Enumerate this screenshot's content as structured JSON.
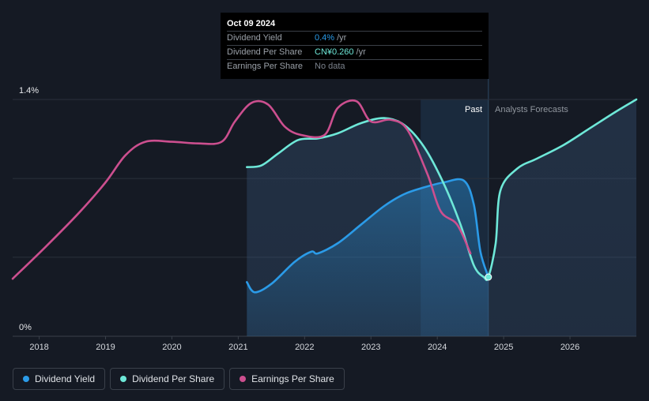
{
  "tooltip": {
    "date": "Oct 09 2024",
    "rows": [
      {
        "label": "Dividend Yield",
        "value": "0.4%",
        "unit": "/yr",
        "color": "#2b9be8"
      },
      {
        "label": "Dividend Per Share",
        "value": "CN¥0.260",
        "unit": "/yr",
        "color": "#6ee8d8"
      },
      {
        "label": "Earnings Per Share",
        "value": "No data",
        "unit": "",
        "color": "#7b828c"
      }
    ]
  },
  "regions": {
    "past": "Past",
    "forecast": "Analysts Forecasts"
  },
  "legend": [
    {
      "label": "Dividend Yield",
      "color": "#2b9be8"
    },
    {
      "label": "Dividend Per Share",
      "color": "#6ee8d8"
    },
    {
      "label": "Earnings Per Share",
      "color": "#cc4f8f"
    }
  ],
  "chart_data": {
    "type": "line",
    "x_ticks": [
      "2018",
      "2019",
      "2020",
      "2021",
      "2022",
      "2023",
      "2024",
      "2025",
      "2026"
    ],
    "y_ticks": [
      "0%",
      "1.4%"
    ],
    "ylim": [
      0,
      1.4
    ],
    "xlim": [
      2017.6,
      2027.0
    ],
    "past_start": 2023.75,
    "tooltip_x": 2024.77,
    "series": [
      {
        "name": "Dividend Yield",
        "color": "#2b9be8",
        "points": [
          [
            2021.13,
            0.32
          ],
          [
            2021.25,
            0.26
          ],
          [
            2021.5,
            0.31
          ],
          [
            2021.85,
            0.44
          ],
          [
            2022.1,
            0.5
          ],
          [
            2022.2,
            0.49
          ],
          [
            2022.5,
            0.55
          ],
          [
            2022.85,
            0.66
          ],
          [
            2023.2,
            0.77
          ],
          [
            2023.5,
            0.84
          ],
          [
            2023.8,
            0.88
          ],
          [
            2024.1,
            0.91
          ],
          [
            2024.4,
            0.92
          ],
          [
            2024.55,
            0.78
          ],
          [
            2024.65,
            0.5
          ],
          [
            2024.77,
            0.35
          ]
        ]
      },
      {
        "name": "Dividend Per Share",
        "color": "#6ee8d8",
        "points": [
          [
            2021.13,
            1.0
          ],
          [
            2021.35,
            1.01
          ],
          [
            2021.6,
            1.08
          ],
          [
            2021.9,
            1.16
          ],
          [
            2022.2,
            1.17
          ],
          [
            2022.5,
            1.2
          ],
          [
            2022.85,
            1.26
          ],
          [
            2023.2,
            1.29
          ],
          [
            2023.5,
            1.25
          ],
          [
            2023.8,
            1.12
          ],
          [
            2024.1,
            0.9
          ],
          [
            2024.35,
            0.66
          ],
          [
            2024.55,
            0.42
          ],
          [
            2024.7,
            0.35
          ],
          [
            2024.77,
            0.35
          ],
          [
            2024.88,
            0.55
          ],
          [
            2024.95,
            0.86
          ],
          [
            2025.2,
            0.99
          ],
          [
            2025.5,
            1.05
          ],
          [
            2025.9,
            1.13
          ],
          [
            2026.3,
            1.23
          ],
          [
            2026.7,
            1.33
          ],
          [
            2027.0,
            1.4
          ]
        ]
      },
      {
        "name": "Earnings Per Share",
        "color": "#cc4f8f",
        "points": [
          [
            2017.6,
            0.34
          ],
          [
            2018.1,
            0.53
          ],
          [
            2018.6,
            0.73
          ],
          [
            2019.0,
            0.91
          ],
          [
            2019.3,
            1.07
          ],
          [
            2019.6,
            1.15
          ],
          [
            2020.0,
            1.15
          ],
          [
            2020.4,
            1.14
          ],
          [
            2020.75,
            1.15
          ],
          [
            2020.95,
            1.27
          ],
          [
            2021.2,
            1.38
          ],
          [
            2021.45,
            1.37
          ],
          [
            2021.7,
            1.24
          ],
          [
            2021.95,
            1.19
          ],
          [
            2022.3,
            1.19
          ],
          [
            2022.5,
            1.35
          ],
          [
            2022.78,
            1.39
          ],
          [
            2023.0,
            1.27
          ],
          [
            2023.3,
            1.28
          ],
          [
            2023.55,
            1.22
          ],
          [
            2023.85,
            0.96
          ],
          [
            2024.05,
            0.74
          ],
          [
            2024.3,
            0.66
          ],
          [
            2024.5,
            0.49
          ]
        ]
      }
    ]
  }
}
